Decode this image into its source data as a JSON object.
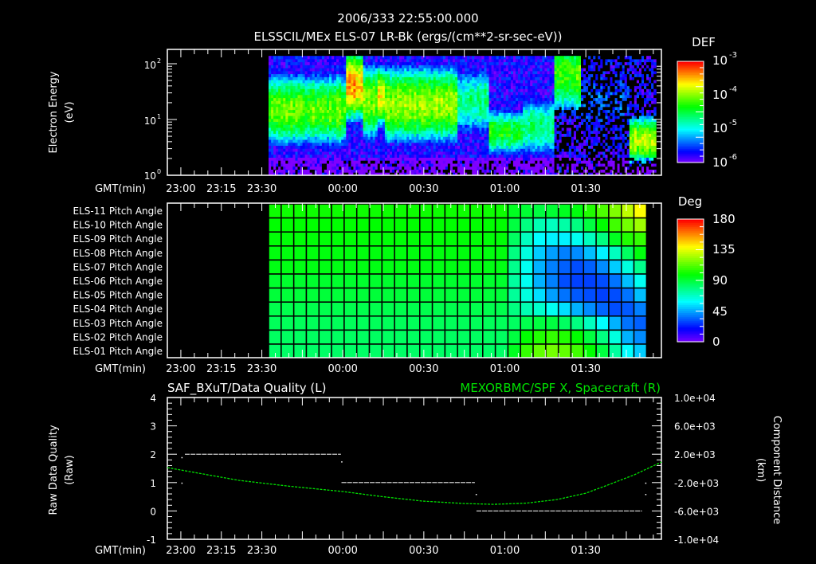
{
  "header": {
    "title": "2006/333 22:55:00.000",
    "subtitle": "ELSSCIL/MEx ELS-07 LR-Bk  (ergs/(cm**2-sr-sec-eV))"
  },
  "time_axis": {
    "label": "GMT(min)",
    "range_min_from_2300": [
      -5,
      178
    ],
    "ticks": [
      {
        "label": "23:00",
        "min": 0
      },
      {
        "label": "23:15",
        "min": 15
      },
      {
        "label": "23:30",
        "min": 30
      },
      {
        "label": "00:00",
        "min": 60
      },
      {
        "label": "00:30",
        "min": 90
      },
      {
        "label": "01:00",
        "min": 120
      },
      {
        "label": "01:30",
        "min": 150
      }
    ]
  },
  "chart_data": [
    {
      "type": "heatmap",
      "name": "energy-spectrogram",
      "ylabel": "Electron Energy",
      "ylabel_units": "(eV)",
      "yscale": "log",
      "ylim_eV": [
        1,
        186
      ],
      "yticks": [
        {
          "base": "10",
          "exp": "0",
          "value": 1
        },
        {
          "base": "10",
          "exp": "1",
          "value": 10
        },
        {
          "base": "10",
          "exp": "2",
          "value": 100
        }
      ],
      "data_time_range_min": [
        32.5,
        176
      ],
      "colorbar": {
        "title": "DEF",
        "scale": "log",
        "range_log10": [
          -6.3,
          -3
        ],
        "ticks": [
          {
            "base": "10",
            "exp": "-3",
            "value": -3
          },
          {
            "base": "10",
            "exp": "-4",
            "value": -4
          },
          {
            "base": "10",
            "exp": "-5",
            "value": -5
          },
          {
            "base": "10",
            "exp": "-6",
            "value": -6
          }
        ]
      },
      "segments_note_fields": [
        "start_min",
        "end_min",
        "peak_log10_eV",
        "peak_log10_DEF",
        "width_decades",
        "dropouts"
      ],
      "segments": [
        [
          32.5,
          61,
          1.15,
          -4.2,
          0.38,
          0
        ],
        [
          61,
          67,
          1.6,
          -3.5,
          0.35,
          0
        ],
        [
          67,
          72,
          1.3,
          -4.1,
          0.4,
          0
        ],
        [
          72,
          75,
          1.4,
          -3.8,
          0.3,
          0
        ],
        [
          75,
          102,
          1.25,
          -4.05,
          0.4,
          0
        ],
        [
          102,
          114,
          1.3,
          -4.8,
          0.4,
          0
        ],
        [
          114,
          126,
          0.75,
          -4.5,
          0.25,
          0
        ],
        [
          126,
          138,
          0.85,
          -4.8,
          0.35,
          0
        ],
        [
          138,
          148,
          1.8,
          -4.3,
          0.45,
          1
        ],
        [
          148,
          166,
          1.3,
          -5.7,
          0.6,
          1
        ],
        [
          166,
          176,
          0.6,
          -3.9,
          0.25,
          1
        ]
      ]
    },
    {
      "type": "heatmap",
      "name": "pitch-angle",
      "colorbar": {
        "title": "Deg",
        "range": [
          0,
          180
        ],
        "ticks": [
          "180",
          "135",
          "90",
          "45",
          "0"
        ]
      },
      "data_time_range_min": [
        32.5,
        172.5
      ],
      "rows": [
        "ELS-11 Pitch Angle",
        "ELS-10 Pitch Angle",
        "ELS-09 Pitch Angle",
        "ELS-08 Pitch Angle",
        "ELS-07 Pitch Angle",
        "ELS-06 Pitch Angle",
        "ELS-05 Pitch Angle",
        "ELS-04 Pitch Angle",
        "ELS-03 Pitch Angle",
        "ELS-02 Pitch Angle",
        "ELS-01 Pitch Angle"
      ],
      "base_values_first_19_cols": [
        102,
        100,
        99,
        98,
        97,
        93,
        91,
        88,
        86,
        85,
        84
      ],
      "values_last_11_cols": [
        [
          95,
          92,
          90,
          92,
          95,
          98,
          105,
          112,
          120,
          130,
          140
        ],
        [
          90,
          80,
          72,
          70,
          74,
          80,
          90,
          100,
          110,
          118,
          125
        ],
        [
          85,
          70,
          60,
          58,
          58,
          62,
          70,
          80,
          95,
          105,
          108
        ],
        [
          80,
          65,
          52,
          45,
          40,
          42,
          50,
          58,
          70,
          85,
          98
        ],
        [
          78,
          62,
          48,
          40,
          35,
          32,
          35,
          42,
          52,
          65,
          78
        ],
        [
          75,
          62,
          48,
          40,
          32,
          30,
          30,
          32,
          38,
          50,
          62
        ],
        [
          76,
          65,
          55,
          45,
          38,
          34,
          32,
          30,
          32,
          38,
          50
        ],
        [
          80,
          72,
          68,
          62,
          55,
          48,
          42,
          36,
          32,
          34,
          40
        ],
        [
          85,
          88,
          90,
          90,
          85,
          80,
          70,
          60,
          48,
          38,
          35
        ],
        [
          90,
          100,
          105,
          108,
          105,
          100,
          90,
          80,
          65,
          48,
          42
        ],
        [
          95,
          108,
          115,
          118,
          115,
          110,
          100,
          90,
          75,
          60,
          52
        ]
      ]
    },
    {
      "type": "line",
      "name": "data-quality-and-position",
      "left_title": "SAF_BXuT/Data Quality (L)",
      "right_title": "MEXORBMC/SPF X, Spacecraft (R)",
      "left_ylabel": "Raw Data Quality",
      "left_yunits": "(Raw)",
      "left_ylim": [
        -1,
        4
      ],
      "left_yticks": [
        "4",
        "3",
        "2",
        "1",
        "0",
        "-1"
      ],
      "right_ylabel": "Component Distance",
      "right_yunits": "(km)",
      "right_ylim": [
        -10000,
        10000
      ],
      "right_yticks": [
        "1.0e+04",
        "6.0e+03",
        "2.0e+03",
        "-2.0e+03",
        "-6.0e+03",
        "-1.0e+04"
      ],
      "quality_segments": [
        {
          "start_min": 1.5,
          "end_min": 59.3,
          "value": 2
        },
        {
          "start_min": 59.5,
          "end_min": 108.9,
          "value": 1
        },
        {
          "start_min": 109.5,
          "end_min": 170.8,
          "value": 0
        }
      ],
      "quality_points": [
        [
          0.2,
          1
        ],
        [
          0.2,
          1.9
        ],
        [
          59.4,
          1.75
        ],
        [
          109.2,
          0.6
        ],
        [
          172,
          1
        ],
        [
          172,
          0.6
        ]
      ],
      "spacecraft_x_km": {
        "color": "#00e000",
        "x_min": [
          -5,
          21.5,
          40,
          59.9,
          75,
          89.4,
          105,
          116,
          128,
          139.5,
          150,
          157.2,
          168,
          178
        ],
        "y_km": [
          109,
          -1690,
          -2500,
          -3263,
          -4000,
          -4612,
          -4950,
          -5062,
          -4900,
          -4387,
          -3500,
          -2478,
          -900,
          894
        ]
      }
    }
  ]
}
